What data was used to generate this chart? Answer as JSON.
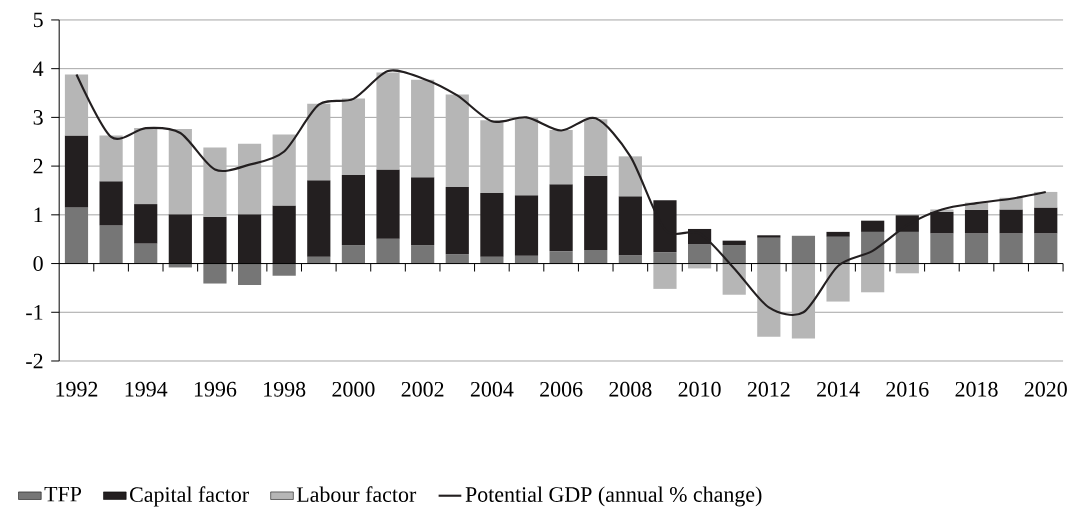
{
  "chart_data": {
    "type": "bar",
    "stacked": true,
    "categories": [
      "1992",
      null,
      "1994",
      null,
      "1996",
      null,
      "1998",
      null,
      "2000",
      null,
      "2002",
      null,
      "2004",
      null,
      "2006",
      null,
      "2008",
      null,
      "2010",
      null,
      "2012",
      null,
      "2014",
      null,
      "2016",
      null,
      "2018",
      null,
      "2020"
    ],
    "series": [
      {
        "name": "TFP",
        "color": "#767676",
        "values": [
          1.15,
          0.78,
          0.41,
          -0.08,
          -0.41,
          -0.44,
          -0.25,
          0.14,
          0.38,
          0.51,
          0.38,
          0.19,
          0.14,
          0.16,
          0.25,
          0.28,
          0.17,
          0.23,
          0.4,
          0.38,
          0.53,
          0.57,
          0.55,
          0.65,
          0.65,
          0.62,
          0.62,
          0.62,
          0.62
        ]
      },
      {
        "name": "Capital factor",
        "color": "#231f20",
        "values": [
          1.48,
          0.91,
          0.81,
          1.01,
          0.96,
          1.01,
          1.19,
          1.57,
          1.44,
          1.42,
          1.39,
          1.38,
          1.31,
          1.24,
          1.38,
          1.52,
          1.21,
          1.07,
          0.31,
          0.09,
          0.05,
          0.0,
          0.1,
          0.23,
          0.34,
          0.44,
          0.48,
          0.49,
          0.53
        ]
      },
      {
        "name": "Labour factor",
        "color": "#b6b6b6",
        "values": [
          1.25,
          0.94,
          1.56,
          1.75,
          1.42,
          1.45,
          1.46,
          1.57,
          1.57,
          1.99,
          2.0,
          1.9,
          1.49,
          1.59,
          1.11,
          1.16,
          0.82,
          -0.52,
          -0.1,
          -0.64,
          -1.5,
          -1.54,
          -0.78,
          -0.59,
          -0.2,
          0.05,
          0.15,
          0.24,
          0.32
        ]
      },
      {
        "name": "Potential GDP (annual % change)",
        "type": "line",
        "color": "#231f20",
        "values": [
          3.88,
          2.6,
          2.78,
          2.68,
          1.93,
          2.03,
          2.3,
          3.26,
          3.38,
          3.95,
          3.8,
          3.45,
          2.92,
          3.0,
          2.73,
          2.98,
          2.2,
          0.7,
          0.62,
          -0.1,
          -0.9,
          -1.0,
          -0.05,
          0.26,
          0.79,
          1.11,
          1.24,
          1.33,
          1.47
        ]
      }
    ],
    "ylim": [
      -2,
      5
    ],
    "yticks": [
      -2,
      -1,
      0,
      1,
      2,
      3,
      4,
      5
    ],
    "grid": "y",
    "legend": "bottom"
  }
}
